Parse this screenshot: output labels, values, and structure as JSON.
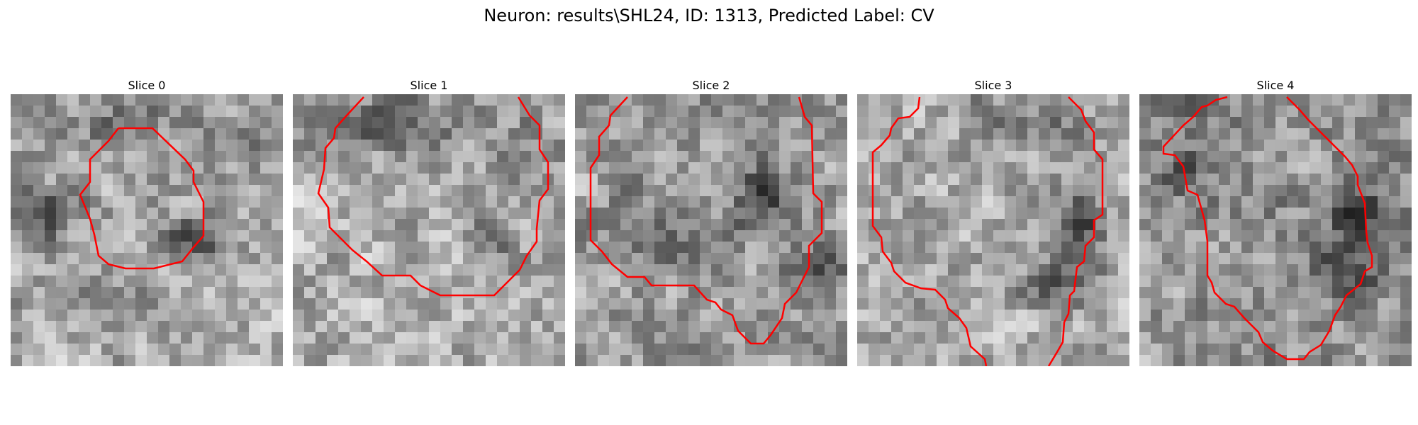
{
  "figure": {
    "title": "Neuron: results\\SHL24, ID: 1313, Predicted Label: CV",
    "contour_color": "#ff0000"
  },
  "slices": [
    {
      "title": "Slice 0"
    },
    {
      "title": "Slice 1"
    },
    {
      "title": "Slice 2"
    },
    {
      "title": "Slice 3"
    },
    {
      "title": "Slice 4"
    }
  ]
}
